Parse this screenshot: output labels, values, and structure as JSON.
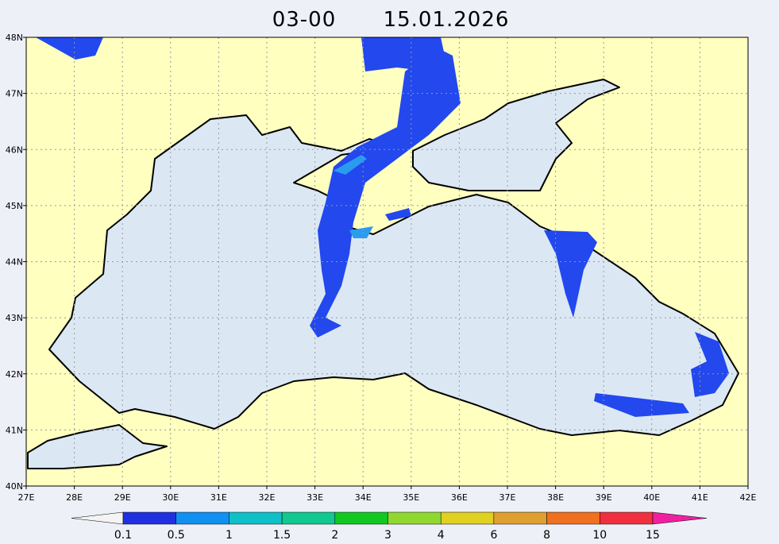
{
  "title": {
    "time": "03-00",
    "date": "15.01.2026"
  },
  "map": {
    "lon_labels": [
      "27E",
      "28E",
      "29E",
      "30E",
      "31E",
      "32E",
      "33E",
      "34E",
      "35E",
      "36E",
      "37E",
      "38E",
      "39E",
      "40E",
      "41E",
      "42E"
    ],
    "lat_labels": [
      "40N",
      "41N",
      "42N",
      "43N",
      "44N",
      "45N",
      "46N",
      "47N",
      "48N"
    ],
    "land_color": "#ffffc0",
    "sea_color": "#dbe8f4"
  },
  "legend": {
    "labels": [
      0.1,
      0.5,
      1,
      1.5,
      2,
      3,
      4,
      6,
      8,
      10,
      15
    ],
    "colors": [
      "#f4f4f4",
      "#2030e0",
      "#1090f0",
      "#10c0c8",
      "#10c890",
      "#10c820",
      "#90d830",
      "#e0d020",
      "#e0a030",
      "#f07020",
      "#f03040",
      "#f020a0"
    ]
  }
}
